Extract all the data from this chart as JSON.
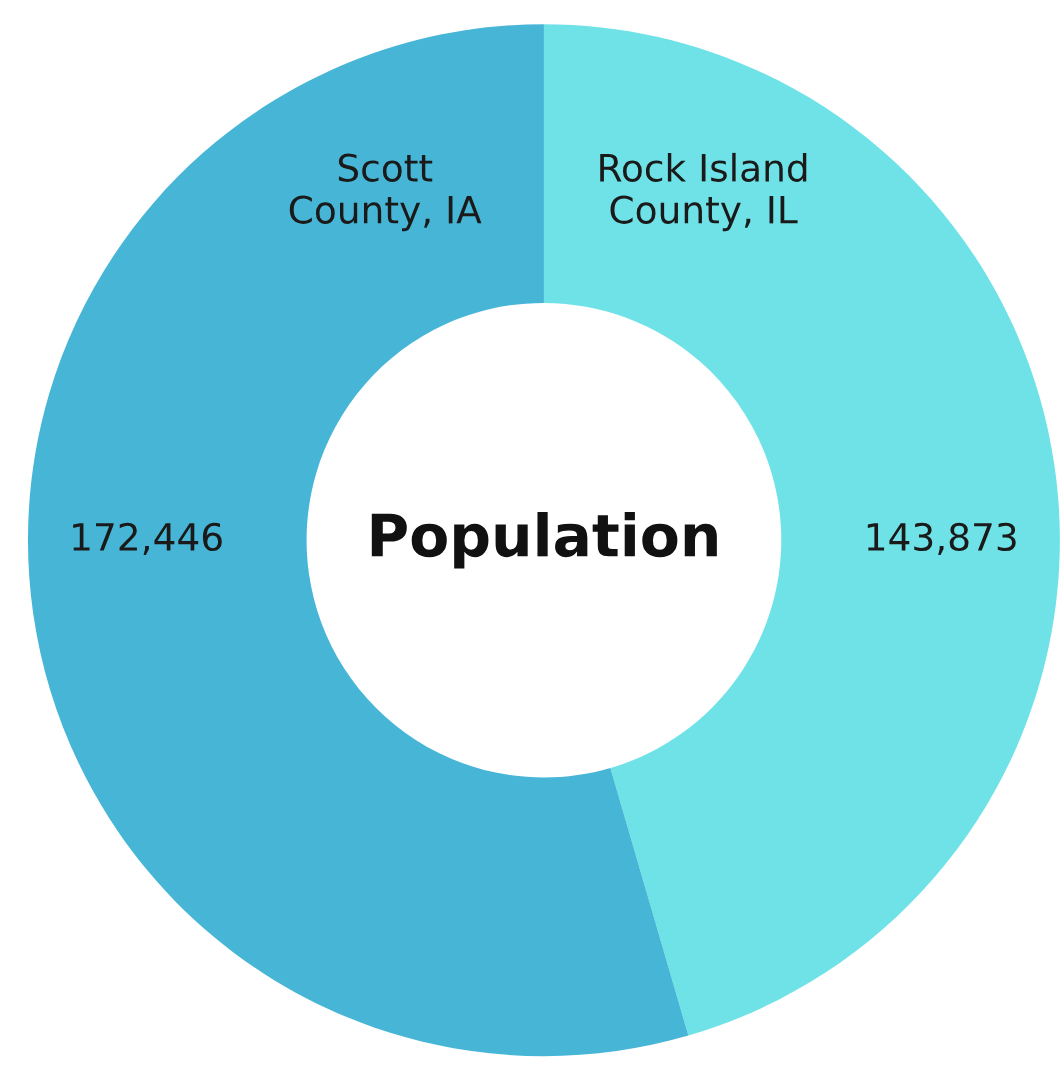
{
  "chart_data": {
    "type": "donut",
    "title": "Population",
    "categories": [
      "Rock Island\nCounty, IL",
      "Scott\nCounty, IA"
    ],
    "values": [
      143873,
      172446
    ],
    "colors": [
      "#6fe2e8",
      "#47b6d6"
    ],
    "value_labels": [
      "143,873",
      "172,446"
    ]
  }
}
